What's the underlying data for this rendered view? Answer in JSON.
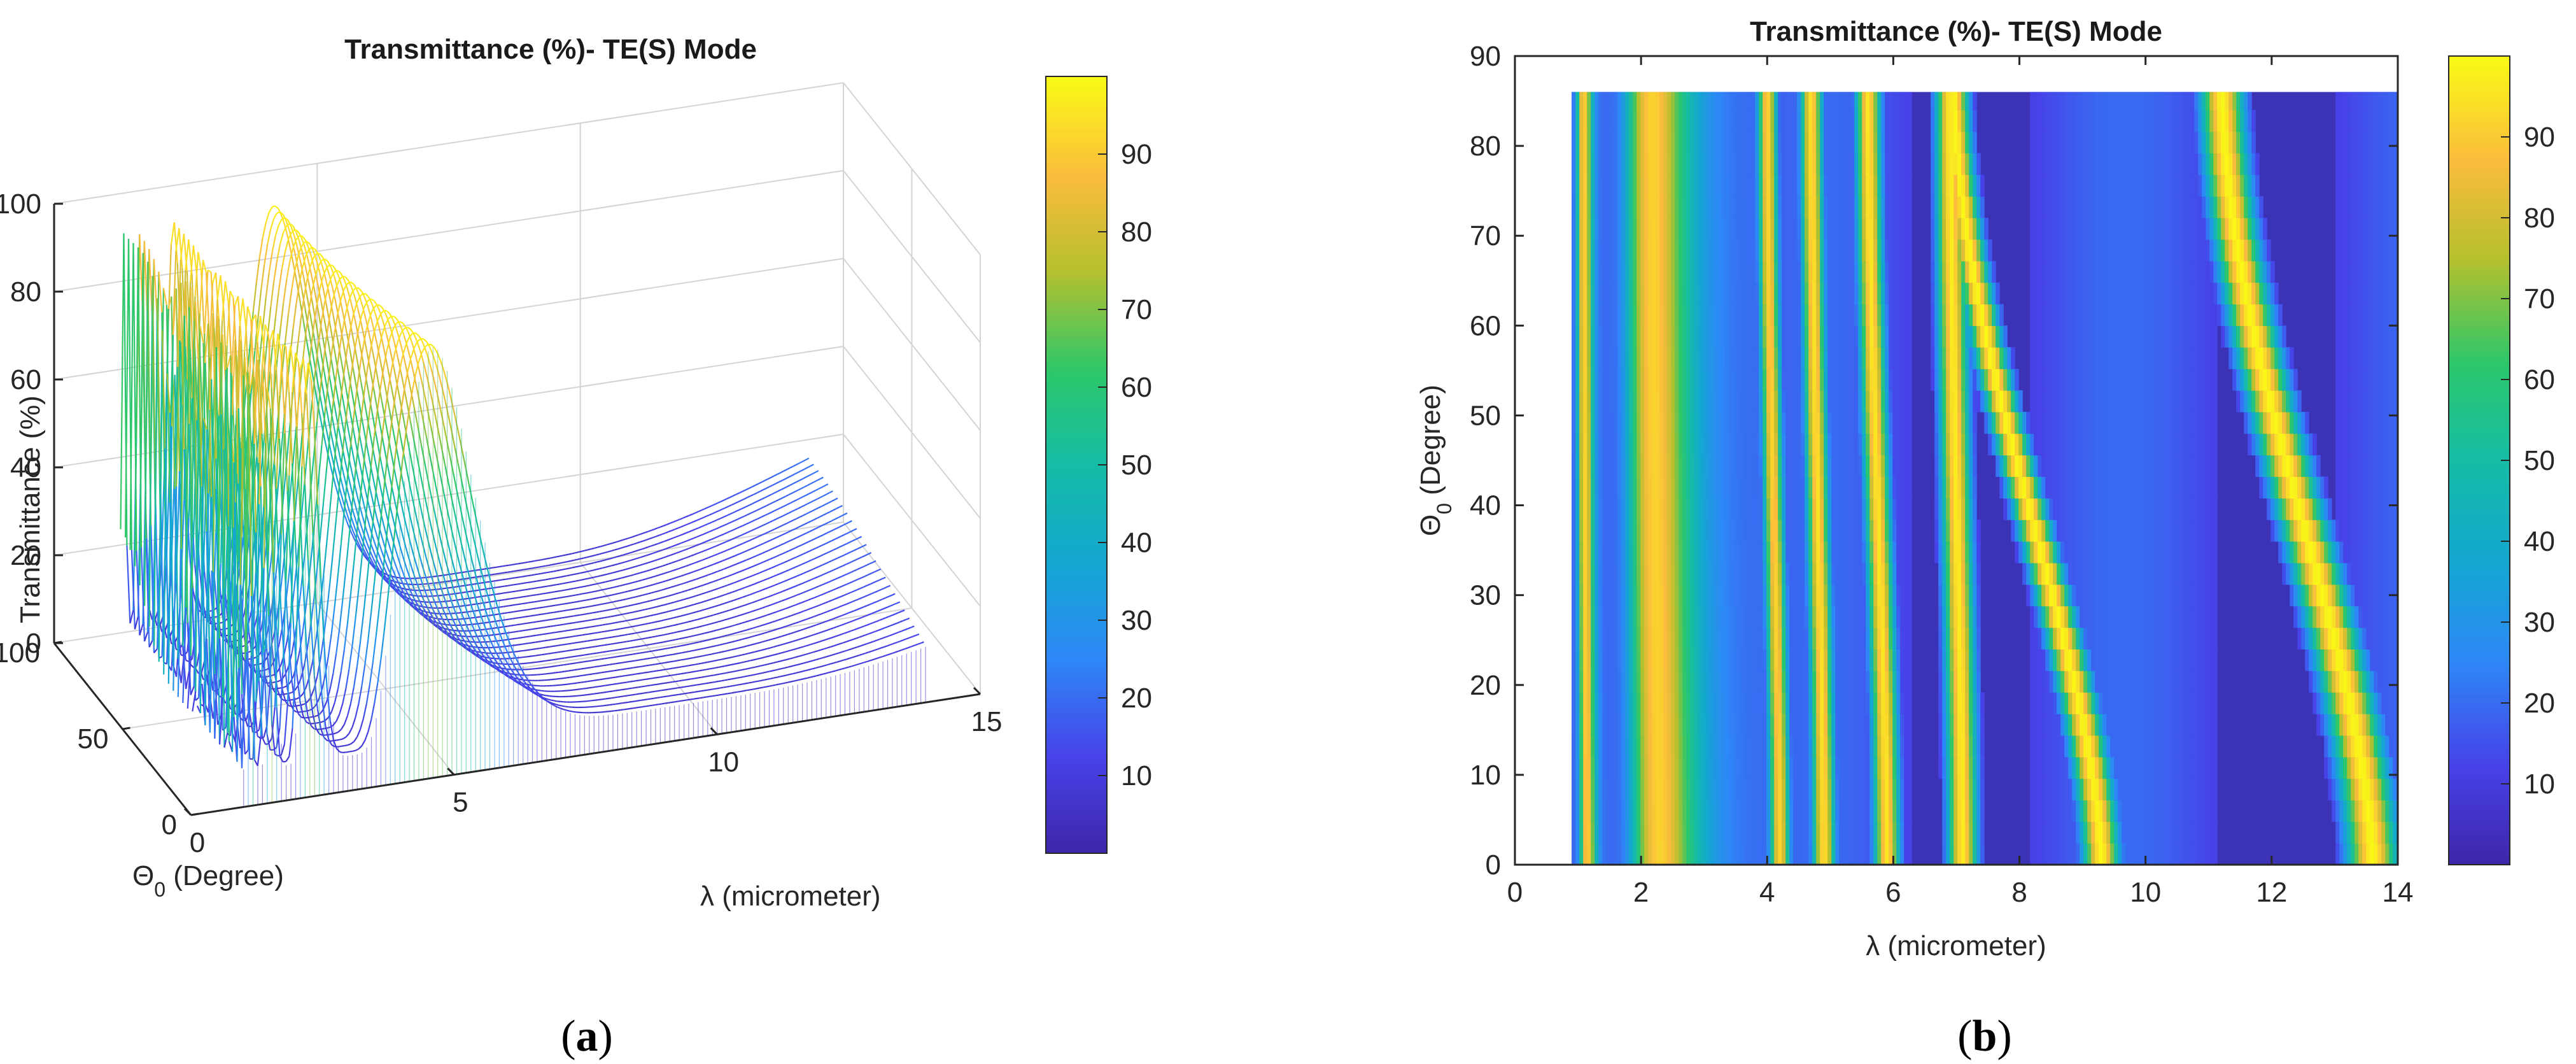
{
  "panels": {
    "a": {
      "label_open": "(",
      "letter": "a",
      "label_close": ")"
    },
    "b": {
      "label_open": "(",
      "letter": "b",
      "label_close": ")"
    }
  },
  "chart_data": [
    {
      "type": "surface",
      "panel": "a",
      "title": "Transmittance (%)- TE(S) Mode",
      "xlabel": "λ (micrometer)",
      "ylabel_symbol": "Θ",
      "ylabel_sub": "0",
      "ylabel_rest": " (Degree)",
      "zlabel": "Transmittance (%)",
      "xlim": [
        0,
        15
      ],
      "ylim": [
        0,
        100
      ],
      "zlim": [
        0,
        100
      ],
      "xticks": [
        0,
        5,
        10,
        15
      ],
      "yticks": [
        0,
        50,
        100
      ],
      "zticks": [
        0,
        20,
        40,
        60,
        80,
        100
      ],
      "colorbar": {
        "ticks": [
          10,
          20,
          30,
          40,
          50,
          60,
          70,
          80,
          90
        ],
        "range": [
          0,
          100
        ],
        "colormap": "parula"
      }
    },
    {
      "type": "heatmap",
      "panel": "b",
      "title": "Transmittance (%)- TE(S) Mode",
      "xlabel": "λ (micrometer)",
      "ylabel_symbol": "Θ",
      "ylabel_sub": "0",
      "ylabel_rest": " (Degree)",
      "xlim": [
        0,
        14
      ],
      "ylim": [
        0,
        90
      ],
      "xticks": [
        0,
        2,
        4,
        6,
        8,
        10,
        12,
        14
      ],
      "yticks": [
        0,
        10,
        20,
        30,
        40,
        50,
        60,
        70,
        80,
        90
      ],
      "data_extent": {
        "lambda": [
          0.9,
          14
        ],
        "theta": [
          0,
          86
        ]
      },
      "transmission_bands": [
        {
          "lambda_at_0deg": 4.2,
          "lambda_at_86deg": 4.0,
          "peak": 92
        },
        {
          "lambda_at_0deg": 4.9,
          "lambda_at_86deg": 4.7,
          "peak": 95
        },
        {
          "lambda_at_0deg": 5.9,
          "lambda_at_86deg": 5.6,
          "peak": 96
        },
        {
          "lambda_at_0deg": 7.1,
          "lambda_at_86deg": 6.9,
          "peak": 97
        },
        {
          "lambda_at_0deg": 9.3,
          "lambda_at_86deg": 6.95,
          "peak": 99
        },
        {
          "lambda_at_0deg": 13.6,
          "lambda_at_86deg": 11.2,
          "peak": 99
        }
      ],
      "colorbar": {
        "ticks": [
          10,
          20,
          30,
          40,
          50,
          60,
          70,
          80,
          90
        ],
        "range": [
          0,
          100
        ],
        "colormap": "parula"
      }
    }
  ]
}
